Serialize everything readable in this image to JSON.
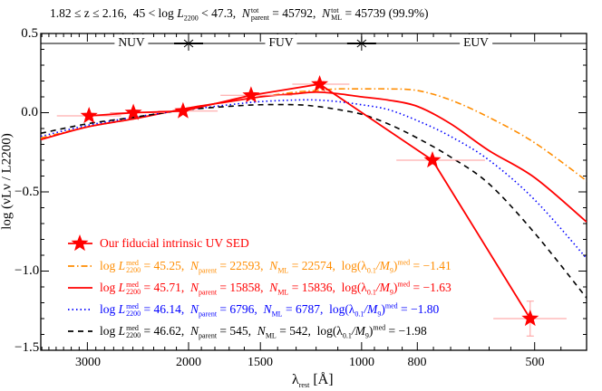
{
  "chart_data": {
    "type": "line",
    "title": {
      "z_range": "1.82 ≤ z ≤ 2.16,",
      "lum_range_prefix": "45 < log",
      "lum_symbol": "L",
      "lum_sub": "2200",
      "lum_range_suffix": "< 47.3,",
      "n_symbol": "N",
      "parent_sub": "parent",
      "ml_sub": "ML",
      "tot_sup": "tot",
      "n_parent_tot": "= 45792,",
      "n_ml_tot": "= 45739 (99.9%)"
    },
    "xlabel": {
      "symbol": "λ",
      "sub": "rest",
      "unit": "[Å]"
    },
    "ylabel": "log (νLν / L2200)",
    "x_scale": "log-reversed",
    "xlim": [
      3615,
      406
    ],
    "ylim": [
      -1.5,
      0.5
    ],
    "x_ticks": [
      "3000",
      "2000",
      "1500",
      "1000",
      "800",
      "500"
    ],
    "y_ticks": [
      "0.5",
      "0.0",
      "−0.5",
      "−1.0",
      "−1.5"
    ],
    "bands": [
      "NUV",
      "FUV",
      "EUV"
    ],
    "band_boundaries": [
      2000,
      1000
    ],
    "fiducial_sed": {
      "name": "Our fiducial intrinsic UV SED",
      "color": "#ff0000",
      "points": [
        {
          "x": 2980,
          "y": -0.02,
          "xerr": [
            3390,
            2620
          ],
          "yerr": 0
        },
        {
          "x": 2495,
          "y": 0.0,
          "xerr": [
            2740,
            2200
          ],
          "yerr": 0
        },
        {
          "x": 2045,
          "y": 0.01,
          "xerr": [
            2260,
            1780
          ],
          "yerr": 0
        },
        {
          "x": 1557,
          "y": 0.11,
          "xerr": [
            1760,
            1320
          ],
          "yerr": 0
        },
        {
          "x": 1183,
          "y": 0.18,
          "xerr": [
            1320,
            1050
          ],
          "yerr": 0
        },
        {
          "x": 753,
          "y": -0.3,
          "xerr": [
            870,
            610
          ],
          "yerr": 0
        },
        {
          "x": 509,
          "y": -1.3,
          "xerr": [
            590,
            440
          ],
          "yerr": 0.11
        }
      ]
    },
    "x": [
      3615,
      3000,
      2500,
      2200,
      2000,
      1700,
      1500,
      1300,
      1200,
      1100,
      1000,
      900,
      800,
      700,
      600,
      500,
      406
    ],
    "series": [
      {
        "color": "#ff8c00",
        "dash": "dashdot",
        "values": [
          -0.16,
          -0.09,
          -0.04,
          0.0,
          0.03,
          0.07,
          0.1,
          0.13,
          0.14,
          0.15,
          0.15,
          0.15,
          0.14,
          0.08,
          -0.03,
          -0.19,
          -0.43
        ],
        "logL": "45.25",
        "Nparent": "22593",
        "NML": "22574",
        "loglam": "−1.41"
      },
      {
        "color": "#ff0000",
        "dash": "solid",
        "values": [
          -0.17,
          -0.09,
          -0.04,
          0.0,
          0.03,
          0.07,
          0.1,
          0.12,
          0.13,
          0.12,
          0.1,
          0.08,
          0.04,
          -0.07,
          -0.24,
          -0.41,
          -0.69
        ],
        "logL": "45.71",
        "Nparent": "15858",
        "NML": "15836",
        "loglam": "−1.63"
      },
      {
        "color": "#0000ff",
        "dash": "dotted",
        "values": [
          -0.15,
          -0.08,
          -0.03,
          0.0,
          0.02,
          0.05,
          0.07,
          0.08,
          0.08,
          0.07,
          0.05,
          0.02,
          -0.05,
          -0.15,
          -0.3,
          -0.55,
          -0.92
        ],
        "logL": "46.14",
        "Nparent": "6796",
        "NML": "6787",
        "loglam": "−1.80"
      },
      {
        "color": "#000000",
        "dash": "dashed",
        "values": [
          -0.13,
          -0.07,
          -0.03,
          0.0,
          0.02,
          0.04,
          0.05,
          0.05,
          0.04,
          0.02,
          -0.01,
          -0.07,
          -0.16,
          -0.28,
          -0.45,
          -0.76,
          -1.17
        ],
        "logL": "46.62",
        "Nparent": "545",
        "NML": "542",
        "loglam": "−1.98"
      }
    ],
    "legend_labels": {
      "log": "log",
      "L": "L",
      "med": "med",
      "sub2200": "2200",
      "N": "N",
      "parent": "parent",
      "ml": "ML",
      "lam_prefix": "log(λ",
      "lam_sub": "0.1",
      "M": "/M",
      "M_sub": "9",
      "lam_suffix": ")"
    },
    "legend_position": "bottom-left",
    "grid": false
  }
}
